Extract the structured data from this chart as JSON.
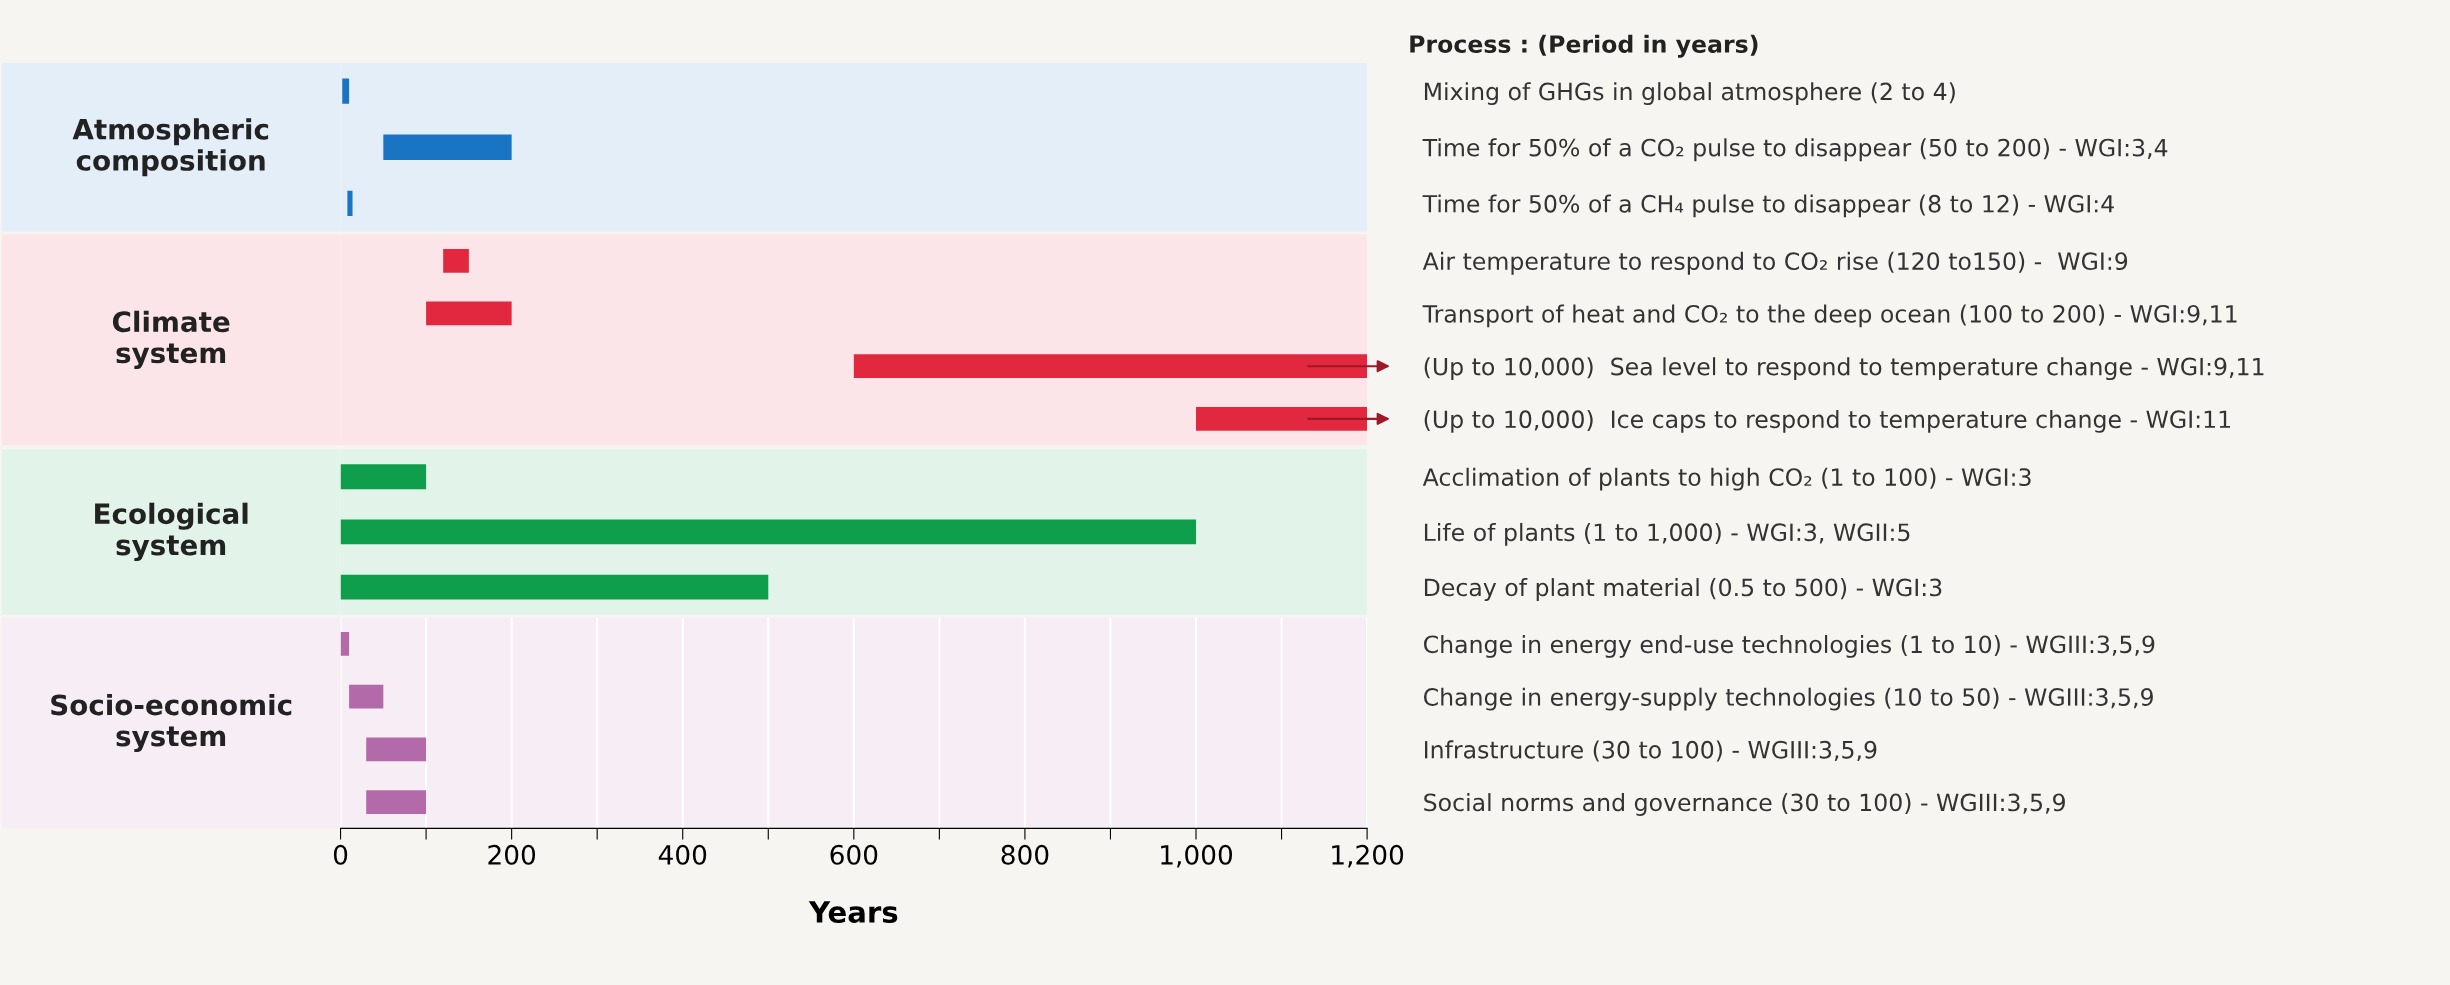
{
  "chart_data": [
    {
      "type": "bar",
      "orientation": "horizontal",
      "title": "Atmospheric\ncomposition",
      "annotations": [
        "Process : (Period in years)"
      ],
      "categories": [
        "Mixing of GHGs in global atmosphere (2 to 4)",
        "Time for 50% of a CO₂ pulse to disappear (50 to 200) - WGI:3,4",
        "Time for 50% of a CH₄ pulse to disappear (8 to 12) - WGI:4"
      ],
      "base": [
        2,
        50,
        8
      ],
      "values": [
        8,
        150,
        6
      ],
      "color": "#1a74c4",
      "xlim": [
        0,
        1200
      ],
      "tick_labels": false,
      "grid": "x"
    },
    {
      "type": "bar",
      "orientation": "horizontal",
      "title": "Climate\nsystem",
      "categories": [
        "Air temperature to respond to CO₂ rise (120 to150) -  WGI:9",
        "Transport of heat and CO₂ to the deep ocean (100 to 200) - WGI:9,11",
        "(Up to 10,000)  Sea level to respond to temperature change - WGI:9,11",
        "(Up to 10,000)  Ice caps to respond to temperature change - WGI:11"
      ],
      "base": [
        120,
        100,
        600,
        1000
      ],
      "values": [
        30,
        100,
        600,
        200
      ],
      "color": "#e2283e",
      "xlim": [
        0,
        1200
      ],
      "tick_labels": false,
      "grid": "x"
    },
    {
      "type": "bar",
      "orientation": "horizontal",
      "title": "Ecological\nsystem",
      "categories": [
        "Acclimation of plants to high CO₂ (1 to 100) - WGI:3",
        "Life of plants (1 to 1,000) - WGI:3, WGII:5",
        "Decay of plant material (0.5 to 500) - WGI:3"
      ],
      "base": [
        0,
        0,
        0
      ],
      "values": [
        100,
        1000,
        500
      ],
      "color": "#0e9e4c",
      "xlim": [
        0,
        1200
      ],
      "tick_labels": false,
      "grid": "x"
    },
    {
      "type": "bar",
      "orientation": "horizontal",
      "title": "Socio-economic\nsystem",
      "xlabel": "Years",
      "categories": [
        "Change in energy end-use technologies (1 to 10) - WGIII:3,5,9",
        "Change in energy-supply technologies (10 to 50) - WGIII:3,5,9",
        "Infrastructure (30 to 100) - WGIII:3,5,9",
        "Social norms and governance (30 to 100) - WGIII:3,5,9"
      ],
      "base": [
        0,
        10,
        30,
        30
      ],
      "values": [
        10,
        40,
        70,
        70
      ],
      "color": "#b36aa8",
      "xlim": [
        0,
        1200
      ],
      "xticks": [
        0,
        {
          "value": 100,
          "label": null
        },
        200,
        {
          "value": 300,
          "label": null
        },
        400,
        {
          "value": 500,
          "label": null
        },
        600,
        {
          "value": 700,
          "label": null
        },
        800,
        {
          "value": 900,
          "label": null
        },
        {
          "value": 1000,
          "label": "1,000"
        },
        {
          "value": 1100,
          "label": null
        },
        {
          "value": 1200,
          "label": "1,200"
        }
      ],
      "tick_labels": "x",
      "grid": "x"
    }
  ]
}
